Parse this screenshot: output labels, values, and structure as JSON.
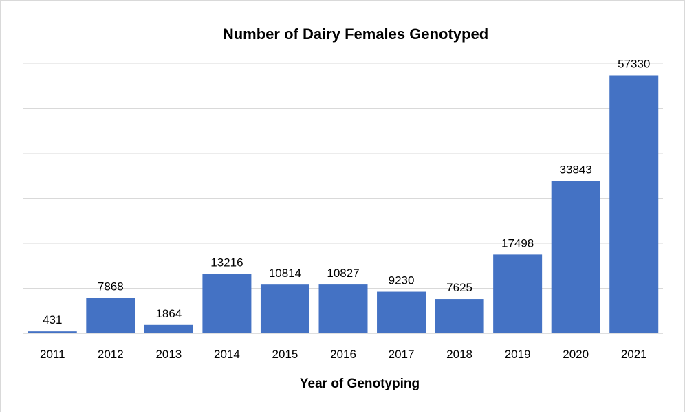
{
  "chart_data": {
    "type": "bar",
    "title": "Number of Dairy Females Genotyped",
    "xlabel": "Year of Genotyping",
    "ylabel": "",
    "categories": [
      "2011",
      "2012",
      "2013",
      "2014",
      "2015",
      "2016",
      "2017",
      "2018",
      "2019",
      "2020",
      "2021"
    ],
    "values": [
      431,
      7868,
      1864,
      13216,
      10814,
      10827,
      9230,
      7625,
      17498,
      33843,
      57330
    ],
    "ylim": [
      0,
      60000
    ],
    "grid": true,
    "data_labels": true,
    "legend": "none",
    "colors": {
      "bar": "#4472c4",
      "grid": "#d9d9d9",
      "axis": "#bfbfbf"
    }
  }
}
